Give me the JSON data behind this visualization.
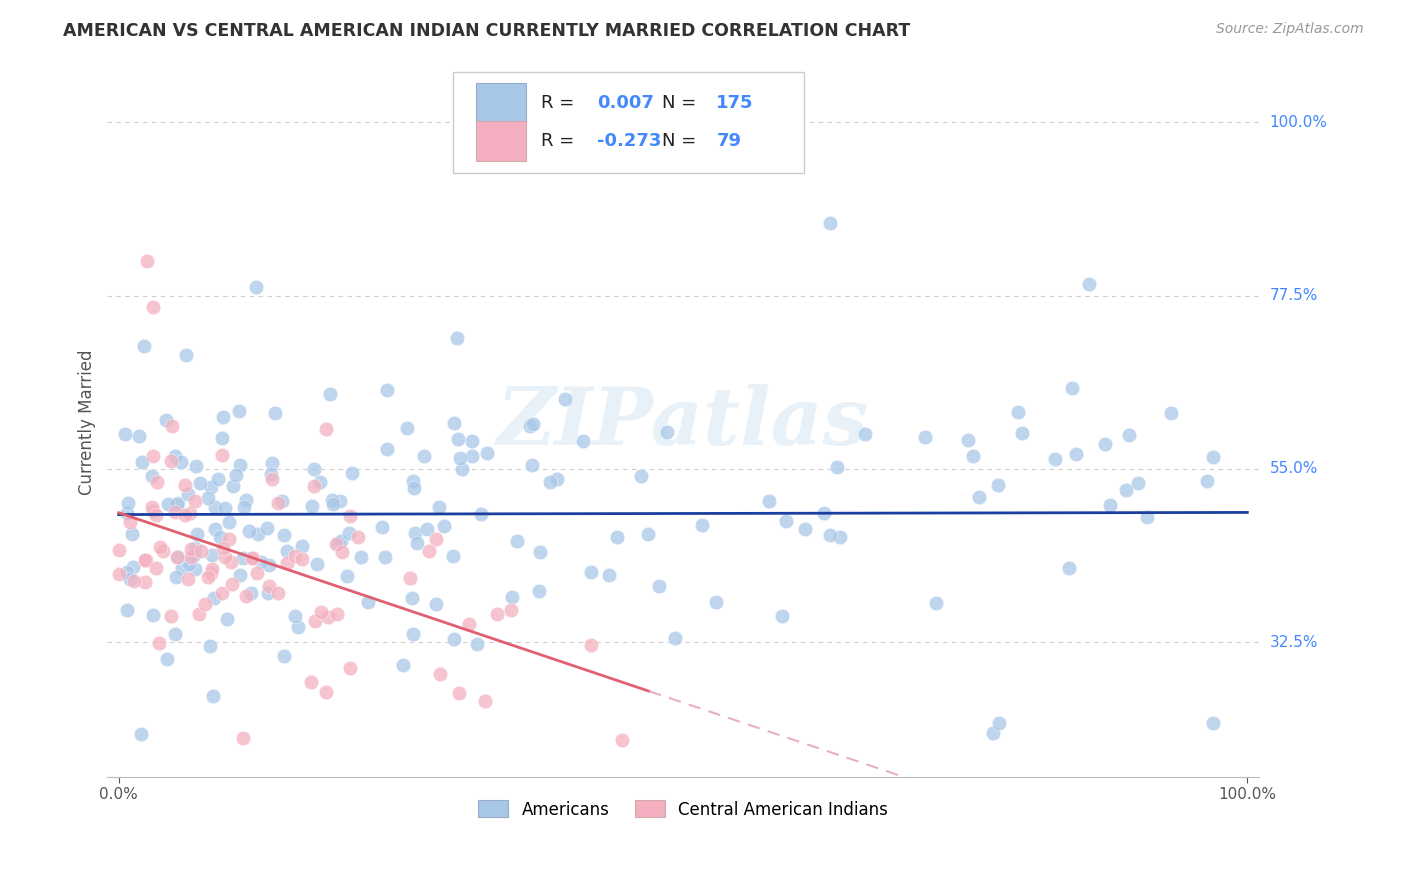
{
  "title": "AMERICAN VS CENTRAL AMERICAN INDIAN CURRENTLY MARRIED CORRELATION CHART",
  "source": "Source: ZipAtlas.com",
  "ylabel": "Currently Married",
  "yticks": [
    "32.5%",
    "55.0%",
    "77.5%",
    "100.0%"
  ],
  "ytick_vals": [
    0.325,
    0.55,
    0.775,
    1.0
  ],
  "R_blue": 0.007,
  "N_blue": 175,
  "R_pink": -0.273,
  "N_pink": 79,
  "blue_color": "#a8c8e8",
  "pink_color": "#f4b0c0",
  "trend_blue_color": "#1a3fa0",
  "trend_pink_solid_color": "#e06070",
  "trend_pink_dashed_color": "#e8b0bc",
  "watermark": "ZIPatlas",
  "legend_label_blue": "Americans",
  "legend_label_pink": "Central American Indians",
  "background_color": "#ffffff",
  "grid_color": "#cccccc",
  "title_color": "#333333",
  "source_color": "#999999",
  "tick_label_color": "#4488ff",
  "legend_text_color": "#333333",
  "legend_value_color": "#4488ff"
}
